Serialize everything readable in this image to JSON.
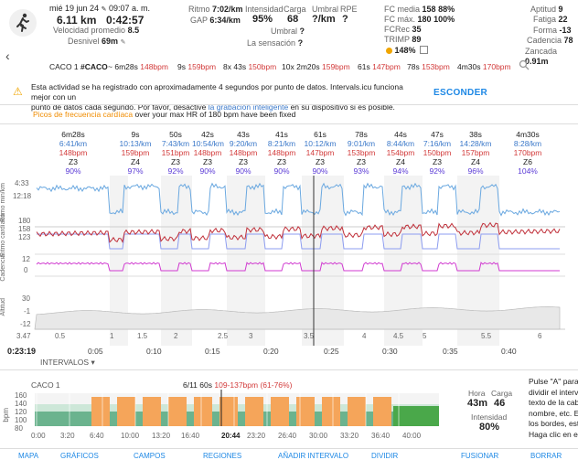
{
  "header": {
    "date": "mié 19 jun 24",
    "time": "09:07 a. m.",
    "distance": "6.11 km",
    "duration": "0:42:57",
    "avg_speed_label": "Velocidad promedio",
    "avg_speed": "8.5",
    "elevation_label": "Desnivel",
    "elevation": "69m",
    "pace_label": "Ritmo",
    "pace": "7:02/km",
    "gap_label": "GAP",
    "gap": "6:34/km",
    "intensity_label": "Intensidad",
    "intensity": "95%",
    "load_label": "Carga",
    "load": "68",
    "threshold_label": "Umbral",
    "threshold": "?/km",
    "rpe_label": "RPE",
    "rpe": "?",
    "umbral2_label": "Umbral",
    "umbral2": "?",
    "feel_label": "La sensación",
    "feel": "?",
    "hr_avg_label": "FC media",
    "hr_avg": "158",
    "hr_avg_pct": "88%",
    "hr_max_label": "FC máx.",
    "hr_max": "180",
    "hr_max_pct": "100%",
    "fcrec_label": "FCRec",
    "fcrec": "35",
    "trimp_label": "TRIMP",
    "trimp": "89",
    "trimp_pct": "148%",
    "fitness_label": "Aptitud",
    "fitness": "9",
    "fatigue_label": "Fatiga",
    "fatigue": "22",
    "form_label": "Forma",
    "form": "-13",
    "cadence_label": "Cadencia",
    "cadence": "78",
    "stride_label": "Zancada",
    "stride": "0.91m"
  },
  "intervals_summary": {
    "label": "CACO 1",
    "tag": "#CACO",
    "items": [
      {
        "text": "~",
        "dur": "6m28s",
        "hr": "148bpm"
      },
      {
        "text": "",
        "dur": "9s",
        "hr": "159bpm"
      },
      {
        "text": "8x",
        "dur": "43s",
        "hr": "150bpm"
      },
      {
        "text": "10x",
        "dur": "2m20s",
        "hr": "159bpm"
      },
      {
        "text": "",
        "dur": "61s",
        "hr": "147bpm"
      },
      {
        "text": "",
        "dur": "78s",
        "hr": "153bpm"
      },
      {
        "text": "",
        "dur": "4m30s",
        "hr": "170bpm"
      }
    ]
  },
  "warning": {
    "line1": "Esta actividad se ha registrado con aproximadamente 4 segundos por punto de datos. Intervals.icu funciona mejor con un",
    "line2_a": "punto de datos cada segundo. Por favor, desactive",
    "line2_link": "la grabación inteligente",
    "line2_b": "en su dispositivo si es posible.",
    "button": "ESCONDER"
  },
  "note": {
    "link": "Picos de frecuencia cardíaca",
    "text": "over your max HR of 180 bpm have been fixed"
  },
  "segments": [
    {
      "dur": "6m28s",
      "pace": "6:41/km",
      "hr": "148bpm",
      "zone": "Z3",
      "pct": "90%"
    },
    {
      "dur": "9s",
      "pace": "10:13/km",
      "hr": "159bpm",
      "zone": "Z4",
      "pct": "97%"
    },
    {
      "dur": "50s",
      "pace": "7:43/km",
      "hr": "151bpm",
      "zone": "Z3",
      "pct": "92%"
    },
    {
      "dur": "42s",
      "pace": "10:54/km",
      "hr": "148bpm",
      "zone": "Z3",
      "pct": "90%"
    },
    {
      "dur": "43s",
      "pace": "9:20/km",
      "hr": "148bpm",
      "zone": "Z3",
      "pct": "90%"
    },
    {
      "dur": "41s",
      "pace": "8:21/km",
      "hr": "148bpm",
      "zone": "Z3",
      "pct": "90%"
    },
    {
      "dur": "61s",
      "pace": "10:12/km",
      "hr": "147bpm",
      "zone": "Z3",
      "pct": "90%"
    },
    {
      "dur": "78s",
      "pace": "9:01/km",
      "hr": "153bpm",
      "zone": "Z3",
      "pct": "93%"
    },
    {
      "dur": "44s",
      "pace": "8:44/km",
      "hr": "154bpm",
      "zone": "Z4",
      "pct": "94%"
    },
    {
      "dur": "47s",
      "pace": "7:16/km",
      "hr": "150bpm",
      "zone": "Z3",
      "pct": "92%"
    },
    {
      "dur": "38s",
      "pace": "14:28/km",
      "hr": "157bpm",
      "zone": "Z4",
      "pct": "96%"
    },
    {
      "dur": "4m30s",
      "pace": "8:28/km",
      "hr": "170bpm",
      "zone": "Z6",
      "pct": "104%"
    }
  ],
  "chart": {
    "y_labels": {
      "pace_top": "4:33",
      "pace_mid": "12:18",
      "hr_top": "180",
      "hr_mid": "158",
      "hr_low": "123",
      "cad_top": "12",
      "cad_mid": "0",
      "alt_top": "30",
      "alt_mid": "-1",
      "alt_low": "-12",
      "dist": "3.47"
    },
    "axis_titles": {
      "pace": "Ritmo min/km",
      "hr": "Ritmo cardíaco",
      "cad": "Cadencia",
      "alt": "Altitud"
    },
    "cursor_time": "0:23:19",
    "x_ticks": [
      "0:05",
      "0:10",
      "0:15",
      "0:20",
      "0:25",
      "0:30",
      "0:35",
      "0:40"
    ],
    "dist_ticks": [
      "0.5",
      "1",
      "1.5",
      "2",
      "2.5",
      "3",
      "3.5",
      "4",
      "4.5",
      "5",
      "5.5",
      "6"
    ],
    "intervals_toggle": "INTERVALOS"
  },
  "bottom": {
    "title": "CACO 1",
    "info": "6/11 60s",
    "range": "109-137bpm (61-76%)",
    "y_ticks": [
      "160",
      "140",
      "120",
      "100",
      "80"
    ],
    "y_label": "bpm",
    "x_ticks": [
      "0:00",
      "3:20",
      "6:40",
      "10:00",
      "13:20",
      "16:40",
      "20:44",
      "23:20",
      "26:40",
      "30:00",
      "33:20",
      "36:40",
      "40:00"
    ],
    "hora_label": "Hora",
    "hora": "43m",
    "carga_label": "Carga",
    "carga": "46",
    "intensity_label": "Intensidad",
    "intensity": "80%",
    "side_text": [
      "Pulse \"A\" para a",
      "dividir el interva",
      "texto de la cabe",
      "nombre, etc. Ed",
      "los bordes, esta",
      "Haga clic en el"
    ]
  },
  "tabs": [
    "MAPA",
    "GRÁFICOS",
    "CAMPOS",
    "REGIONES",
    "AÑADIR INTERVALO",
    "DIVIDIR",
    "FUSIONAR",
    "BORRAR"
  ]
}
